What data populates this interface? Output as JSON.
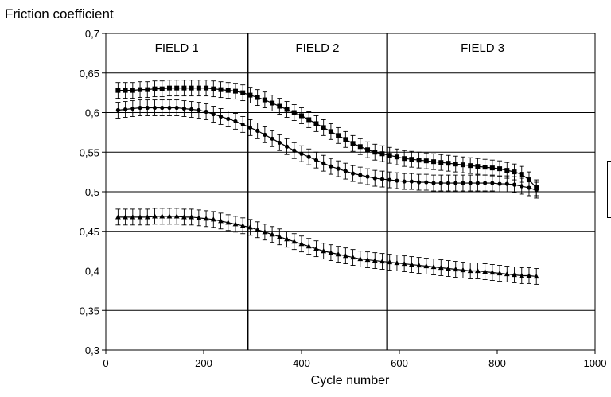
{
  "chart_data": {
    "type": "line",
    "ylabel": "Friction coefficient",
    "xlabel": "Cycle number",
    "xlim": [
      0,
      1000
    ],
    "ylim": [
      0.3,
      0.7
    ],
    "x_ticks": [
      "0",
      "200",
      "400",
      "600",
      "800",
      "1000"
    ],
    "y_ticks": [
      "0,3",
      "0,35",
      "0,4",
      "0,45",
      "0,5",
      "0,55",
      "0,6",
      "0,65",
      "0,7"
    ],
    "grid": "horizontal",
    "field_boundaries": [
      290,
      575
    ],
    "field_labels": [
      "FIELD 1",
      "FIELD 2",
      "FIELD 3"
    ],
    "error_bar": 0.01,
    "x": [
      25,
      40,
      55,
      70,
      85,
      100,
      115,
      130,
      145,
      160,
      175,
      190,
      205,
      220,
      235,
      250,
      265,
      280,
      295,
      310,
      325,
      340,
      355,
      370,
      385,
      400,
      415,
      430,
      445,
      460,
      475,
      490,
      505,
      520,
      535,
      550,
      565,
      580,
      595,
      610,
      625,
      640,
      655,
      670,
      685,
      700,
      715,
      730,
      745,
      760,
      775,
      790,
      805,
      820,
      835,
      850,
      865,
      880
    ],
    "series": [
      {
        "marker": "square",
        "values": [
          0.628,
          0.628,
          0.628,
          0.629,
          0.629,
          0.63,
          0.63,
          0.631,
          0.631,
          0.631,
          0.631,
          0.631,
          0.631,
          0.63,
          0.629,
          0.628,
          0.627,
          0.625,
          0.622,
          0.619,
          0.616,
          0.612,
          0.608,
          0.604,
          0.6,
          0.596,
          0.591,
          0.586,
          0.581,
          0.576,
          0.571,
          0.566,
          0.561,
          0.557,
          0.553,
          0.55,
          0.548,
          0.546,
          0.544,
          0.542,
          0.541,
          0.54,
          0.539,
          0.538,
          0.537,
          0.536,
          0.535,
          0.534,
          0.533,
          0.532,
          0.531,
          0.53,
          0.529,
          0.527,
          0.525,
          0.522,
          0.515,
          0.505
        ]
      },
      {
        "marker": "circle",
        "values": [
          0.603,
          0.604,
          0.605,
          0.606,
          0.606,
          0.606,
          0.606,
          0.606,
          0.606,
          0.605,
          0.604,
          0.603,
          0.601,
          0.598,
          0.595,
          0.592,
          0.589,
          0.585,
          0.581,
          0.577,
          0.572,
          0.567,
          0.562,
          0.557,
          0.552,
          0.548,
          0.544,
          0.54,
          0.536,
          0.532,
          0.529,
          0.526,
          0.523,
          0.521,
          0.519,
          0.517,
          0.516,
          0.515,
          0.514,
          0.513,
          0.513,
          0.512,
          0.512,
          0.511,
          0.511,
          0.511,
          0.511,
          0.511,
          0.511,
          0.511,
          0.511,
          0.511,
          0.51,
          0.51,
          0.509,
          0.507,
          0.505,
          0.502
        ]
      },
      {
        "marker": "triangle",
        "values": [
          0.468,
          0.468,
          0.468,
          0.468,
          0.468,
          0.469,
          0.469,
          0.469,
          0.469,
          0.468,
          0.468,
          0.467,
          0.466,
          0.465,
          0.463,
          0.461,
          0.459,
          0.457,
          0.455,
          0.452,
          0.449,
          0.446,
          0.443,
          0.44,
          0.437,
          0.434,
          0.431,
          0.428,
          0.425,
          0.423,
          0.421,
          0.419,
          0.417,
          0.415,
          0.414,
          0.413,
          0.412,
          0.411,
          0.41,
          0.409,
          0.408,
          0.407,
          0.406,
          0.405,
          0.404,
          0.403,
          0.402,
          0.401,
          0.4,
          0.4,
          0.399,
          0.398,
          0.397,
          0.396,
          0.395,
          0.394,
          0.394,
          0.393
        ]
      }
    ]
  }
}
